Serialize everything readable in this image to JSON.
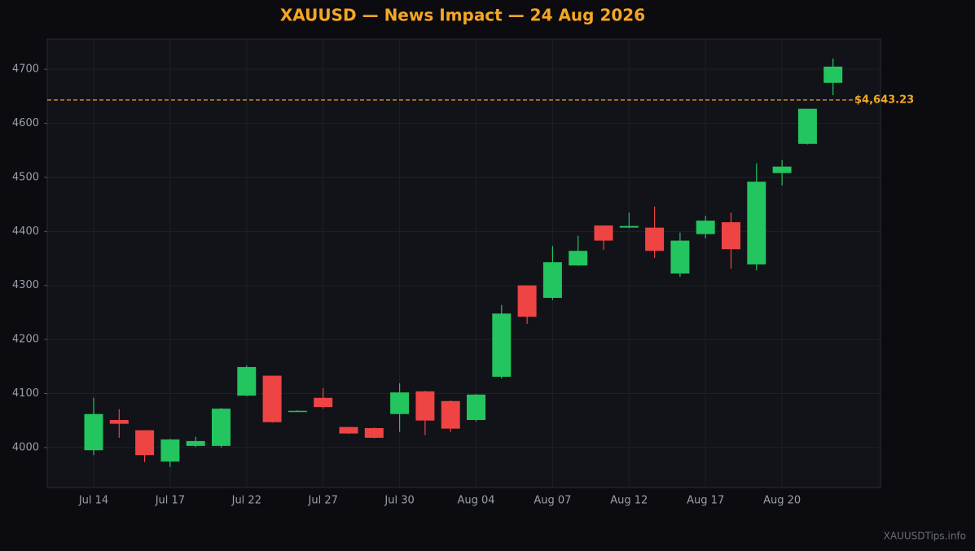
{
  "chart_data": {
    "type": "candlestick",
    "title": "XAUUSD — News Impact — 24 Aug 2026",
    "watermark": "XAUUSDTips.info",
    "categories": [
      "Jul 14",
      null,
      null,
      "Jul 17",
      null,
      null,
      "Jul 22",
      null,
      null,
      "Jul 27",
      null,
      null,
      "Jul 30",
      null,
      null,
      "Aug 04",
      null,
      null,
      "Aug 07",
      null,
      null,
      "Aug 12",
      null,
      null,
      "Aug 17",
      null,
      null,
      "Aug 20",
      null,
      null
    ],
    "open": [
      3995,
      4051,
      4032,
      3974,
      4003,
      4003,
      4096,
      4133,
      4067,
      4092,
      4038,
      4036,
      4062,
      4104,
      4086,
      4051,
      4131,
      4300,
      4277,
      4337,
      4411,
      4407,
      4407,
      4322,
      4395,
      4417,
      4339,
      4508,
      4562,
      4675
    ],
    "high": [
      4092,
      4071,
      4032,
      4016,
      4020,
      4073,
      4152,
      4133,
      4069,
      4110,
      4038,
      4037,
      4119,
      4105,
      4087,
      4099,
      4264,
      4300,
      4373,
      4392,
      4411,
      4435,
      4446,
      4398,
      4429,
      4435,
      4526,
      4532,
      4627,
      4720
    ],
    "low": [
      3986,
      4018,
      3973,
      3964,
      4001,
      4000,
      4095,
      4046,
      4066,
      4072,
      4025,
      4017,
      4029,
      4023,
      4029,
      4048,
      4128,
      4229,
      4273,
      4336,
      4366,
      4406,
      4351,
      4316,
      4387,
      4331,
      4328,
      4485,
      4561,
      4652
    ],
    "close": [
      4062,
      4044,
      3986,
      4015,
      4012,
      4072,
      4149,
      4047,
      4068,
      4075,
      4026,
      4018,
      4102,
      4050,
      4035,
      4098,
      4248,
      4242,
      4343,
      4364,
      4383,
      4410,
      4364,
      4383,
      4420,
      4367,
      4492,
      4520,
      4627,
      4705
    ],
    "up_color": "#22c55e",
    "down_color": "#ef4444",
    "ylim": [
      3926,
      4756
    ],
    "yticks": [
      4000,
      4100,
      4200,
      4300,
      4400,
      4500,
      4600,
      4700
    ],
    "grid": true,
    "reference_line": {
      "value": 4643.23,
      "label": "$4,643.23",
      "color": "#f5a623"
    }
  }
}
